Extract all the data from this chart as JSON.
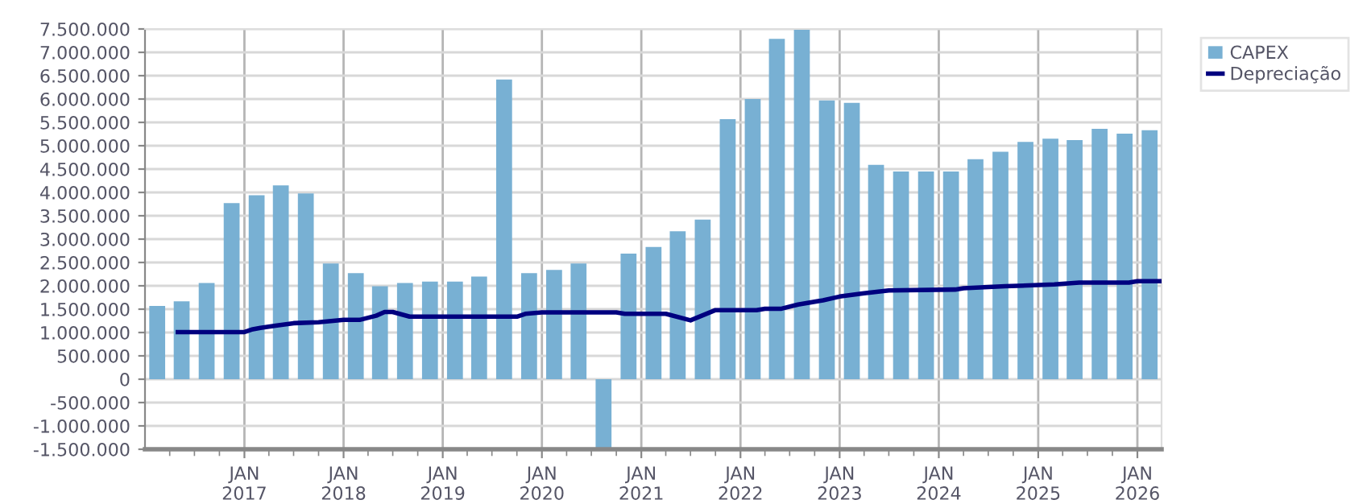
{
  "chart_data": {
    "type": "bar",
    "x": [
      "2016-02-15",
      "2016-05-15",
      "2016-08-15",
      "2016-11-15",
      "2017-02-15",
      "2017-05-15",
      "2017-08-15",
      "2017-11-15",
      "2018-02-15",
      "2018-05-15",
      "2018-08-15",
      "2018-11-15",
      "2019-02-15",
      "2019-05-15",
      "2019-08-15",
      "2019-11-15",
      "2020-02-15",
      "2020-05-15",
      "2020-08-15",
      "2020-11-15",
      "2021-02-15",
      "2021-05-15",
      "2021-08-15",
      "2021-11-15",
      "2022-02-15",
      "2022-05-15",
      "2022-08-15",
      "2022-11-15",
      "2023-02-15",
      "2023-05-15",
      "2023-08-15",
      "2023-11-15",
      "2024-02-15",
      "2024-05-15",
      "2024-08-15",
      "2024-11-15",
      "2025-02-15",
      "2025-05-15",
      "2025-08-15",
      "2025-11-15",
      "2026-02-15"
    ],
    "series": [
      {
        "name": "CAPEX",
        "color": "#78b0d3",
        "values": [
          1570000,
          1670000,
          2060000,
          3770000,
          3940000,
          4150000,
          3980000,
          2480000,
          2270000,
          1990000,
          2060000,
          2090000,
          2090000,
          2200000,
          6420000,
          2270000,
          2340000,
          2480000,
          -1500000,
          2690000,
          2830000,
          3170000,
          3420000,
          5570000,
          6000000,
          7290000,
          7500000,
          5970000,
          5920000,
          4590000,
          4450000,
          4450000,
          4450000,
          4710000,
          4870000,
          5080000,
          5150000,
          5120000,
          5360000,
          5260000,
          5330000
        ]
      },
      {
        "name": "Depreciação",
        "type": "line",
        "color": "#00007f",
        "x": [
          "2016-05-01",
          "2017-01-01",
          "2017-02-01",
          "2017-03-01",
          "2017-05-01",
          "2017-07-01",
          "2017-10-01",
          "2018-01-01",
          "2018-03-01",
          "2018-05-01",
          "2018-06-01",
          "2018-07-01",
          "2018-09-01",
          "2019-10-01",
          "2019-11-01",
          "2020-01-01",
          "2020-10-01",
          "2020-11-01",
          "2021-04-01",
          "2021-07-01",
          "2021-10-01",
          "2022-03-01",
          "2022-04-01",
          "2022-06-01",
          "2022-08-01",
          "2022-11-01",
          "2023-01-01",
          "2023-04-01",
          "2023-07-01",
          "2024-03-01",
          "2024-04-01",
          "2024-09-01",
          "2025-03-01",
          "2025-06-01",
          "2025-12-01",
          "2026-01-01",
          "2026-03-25"
        ],
        "values": [
          1010000,
          1010000,
          1070000,
          1100000,
          1150000,
          1200000,
          1220000,
          1270000,
          1270000,
          1360000,
          1440000,
          1440000,
          1340000,
          1340000,
          1400000,
          1430000,
          1430000,
          1400000,
          1400000,
          1260000,
          1480000,
          1480000,
          1510000,
          1510000,
          1600000,
          1690000,
          1770000,
          1840000,
          1900000,
          1920000,
          1950000,
          1990000,
          2030000,
          2070000,
          2070000,
          2100000,
          2100000
        ]
      }
    ],
    "xlim": [
      "2016-01-01",
      "2026-03-31"
    ],
    "xticks": [
      {
        "value": "2016-04-01",
        "label": null
      },
      {
        "value": "2016-07-01",
        "label": null
      },
      {
        "value": "2016-10-01",
        "label": null
      },
      {
        "value": "2017-01-01",
        "label": "JAN\n2017"
      },
      {
        "value": "2017-04-01",
        "label": null
      },
      {
        "value": "2017-07-01",
        "label": null
      },
      {
        "value": "2017-10-01",
        "label": null
      },
      {
        "value": "2018-01-01",
        "label": "JAN\n2018"
      },
      {
        "value": "2018-04-01",
        "label": null
      },
      {
        "value": "2018-07-01",
        "label": null
      },
      {
        "value": "2018-10-01",
        "label": null
      },
      {
        "value": "2019-01-01",
        "label": "JAN\n2019"
      },
      {
        "value": "2019-04-01",
        "label": null
      },
      {
        "value": "2019-07-01",
        "label": null
      },
      {
        "value": "2019-10-01",
        "label": null
      },
      {
        "value": "2020-01-01",
        "label": "JAN\n2020"
      },
      {
        "value": "2020-04-01",
        "label": null
      },
      {
        "value": "2020-07-01",
        "label": null
      },
      {
        "value": "2020-10-01",
        "label": null
      },
      {
        "value": "2021-01-01",
        "label": "JAN\n2021"
      },
      {
        "value": "2021-04-01",
        "label": null
      },
      {
        "value": "2021-07-01",
        "label": null
      },
      {
        "value": "2021-10-01",
        "label": null
      },
      {
        "value": "2022-01-01",
        "label": "JAN\n2022"
      },
      {
        "value": "2022-04-01",
        "label": null
      },
      {
        "value": "2022-07-01",
        "label": null
      },
      {
        "value": "2022-10-01",
        "label": null
      },
      {
        "value": "2023-01-01",
        "label": "JAN\n2023"
      },
      {
        "value": "2023-04-01",
        "label": null
      },
      {
        "value": "2023-07-01",
        "label": null
      },
      {
        "value": "2023-10-01",
        "label": null
      },
      {
        "value": "2024-01-01",
        "label": "JAN\n2024"
      },
      {
        "value": "2024-04-01",
        "label": null
      },
      {
        "value": "2024-07-01",
        "label": null
      },
      {
        "value": "2024-10-01",
        "label": null
      },
      {
        "value": "2025-01-01",
        "label": "JAN\n2025"
      },
      {
        "value": "2025-04-01",
        "label": null
      },
      {
        "value": "2025-07-01",
        "label": null
      },
      {
        "value": "2025-10-01",
        "label": null
      },
      {
        "value": "2026-01-01",
        "label": "JAN\n2026"
      }
    ],
    "ylim": [
      -1500000,
      7500000
    ],
    "yticks": [
      {
        "value": -1500000,
        "label": "-1.500.000"
      },
      {
        "value": -1000000,
        "label": "-1.000.000"
      },
      {
        "value": -500000,
        "label": "-500.000"
      },
      {
        "value": 0,
        "label": "0"
      },
      {
        "value": 500000,
        "label": "500.000"
      },
      {
        "value": 1000000,
        "label": "1.000.000"
      },
      {
        "value": 1500000,
        "label": "1.500.000"
      },
      {
        "value": 2000000,
        "label": "2.000.000"
      },
      {
        "value": 2500000,
        "label": "2.500.000"
      },
      {
        "value": 3000000,
        "label": "3.000.000"
      },
      {
        "value": 3500000,
        "label": "3.500.000"
      },
      {
        "value": 4000000,
        "label": "4.000.000"
      },
      {
        "value": 4500000,
        "label": "4.500.000"
      },
      {
        "value": 5000000,
        "label": "5.000.000"
      },
      {
        "value": 5500000,
        "label": "5.500.000"
      },
      {
        "value": 6000000,
        "label": "6.000.000"
      },
      {
        "value": 6500000,
        "label": "6.500.000"
      },
      {
        "value": 7000000,
        "label": "7.000.000"
      },
      {
        "value": 7500000,
        "label": "7.500.000"
      }
    ],
    "grid": true,
    "legend": "top right"
  }
}
